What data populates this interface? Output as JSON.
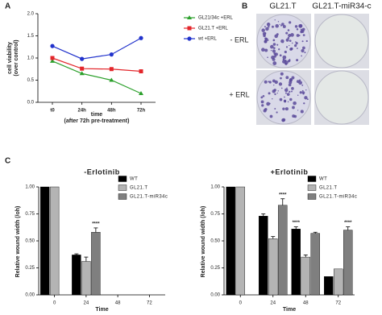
{
  "chart_data": [
    {
      "type": "line",
      "panel_label": "A",
      "categories": [
        "t0",
        "24h",
        "48h",
        "72h"
      ],
      "ylabel": [
        "cell viability",
        "(over control)"
      ],
      "xlabel": [
        "time",
        "(after 72h pre-treatment)"
      ],
      "ylim": [
        0,
        2
      ],
      "yticks": [
        {
          "value": 0,
          "label": "0.0"
        },
        {
          "value": 0.5,
          "label": "0.5"
        },
        {
          "value": 1,
          "label": "1.0"
        },
        {
          "value": 1.5,
          "label": "1.5"
        },
        {
          "value": 2,
          "label": "2.0"
        }
      ],
      "legend": "upper right",
      "series": [
        {
          "name": "GL21/34c +ERL",
          "color": "#2ca02c",
          "marker": "triangle",
          "values": [
            0.93,
            0.65,
            0.5,
            0.2
          ]
        },
        {
          "name": "GL21.T +ERL",
          "color": "#e3262b",
          "marker": "square",
          "values": [
            1.0,
            0.76,
            0.75,
            0.7
          ]
        },
        {
          "name": "wt +ERL",
          "color": "#2233cc",
          "marker": "circle",
          "values": [
            1.27,
            0.98,
            1.08,
            1.45
          ]
        }
      ]
    },
    {
      "type": "bar",
      "panel_label": "C",
      "title": "-Erlotinib",
      "categories": [
        "0",
        "24",
        "48",
        "72"
      ],
      "ylabel": "Relative wound width (/oh)",
      "xlabel": "Time",
      "ylim": [
        0,
        1
      ],
      "yticks": [
        {
          "value": 0,
          "label": "0.00"
        },
        {
          "value": 0.25,
          "label": "0.25"
        },
        {
          "value": 0.5,
          "label": "0.50"
        },
        {
          "value": 0.75,
          "label": "0.75"
        },
        {
          "value": 1,
          "label": "1.00"
        }
      ],
      "legend": "upper right",
      "series": [
        {
          "name": "WT",
          "color": "#000000",
          "values": [
            1.0,
            0.37,
            null,
            null
          ],
          "errors": [
            null,
            0.01,
            null,
            null
          ]
        },
        {
          "name": "GL21.T",
          "color": "#b4b4b4",
          "values": [
            1.0,
            0.31,
            null,
            null
          ],
          "errors": [
            null,
            0.04,
            null,
            null
          ]
        },
        {
          "name": "GL21.T-miR34c",
          "color": "#7f7f7f",
          "values": [
            null,
            0.58,
            null,
            null
          ],
          "errors": [
            null,
            0.04,
            null,
            null
          ]
        }
      ],
      "annotations": [
        {
          "category": "24",
          "text": "****"
        }
      ]
    },
    {
      "type": "bar",
      "title": "+Erlotinib",
      "categories": [
        "0",
        "24",
        "48",
        "72"
      ],
      "ylabel": "Relative wound width (/oh)",
      "xlabel": "Time",
      "ylim": [
        0,
        1
      ],
      "yticks": [
        {
          "value": 0,
          "label": "0.00"
        },
        {
          "value": 0.25,
          "label": "0.25"
        },
        {
          "value": 0.5,
          "label": "0.50"
        },
        {
          "value": 0.75,
          "label": "0.75"
        },
        {
          "value": 1,
          "label": "1.00"
        }
      ],
      "legend": "upper right",
      "series": [
        {
          "name": "WT",
          "color": "#000000",
          "values": [
            1.0,
            0.73,
            0.61,
            0.17
          ],
          "errors": [
            null,
            0.02,
            0.02,
            null
          ]
        },
        {
          "name": "GL21.T",
          "color": "#b4b4b4",
          "values": [
            1.0,
            0.52,
            0.35,
            0.24
          ],
          "errors": [
            null,
            0.02,
            0.02,
            null
          ]
        },
        {
          "name": "GL21.T-miR34c",
          "color": "#7f7f7f",
          "values": [
            null,
            0.83,
            0.57,
            0.6
          ],
          "errors": [
            null,
            0.06,
            0.01,
            0.03
          ]
        }
      ],
      "annotations": [
        {
          "category": "24",
          "text": "****"
        },
        {
          "category": "48",
          "text": "****"
        },
        {
          "category": "72",
          "text": "****"
        }
      ]
    }
  ],
  "image_panel": {
    "label": "B",
    "columns": [
      "GL21.T",
      "GL21.T-miR34-c"
    ],
    "rows": [
      "- ERL",
      "+ ERL"
    ]
  }
}
